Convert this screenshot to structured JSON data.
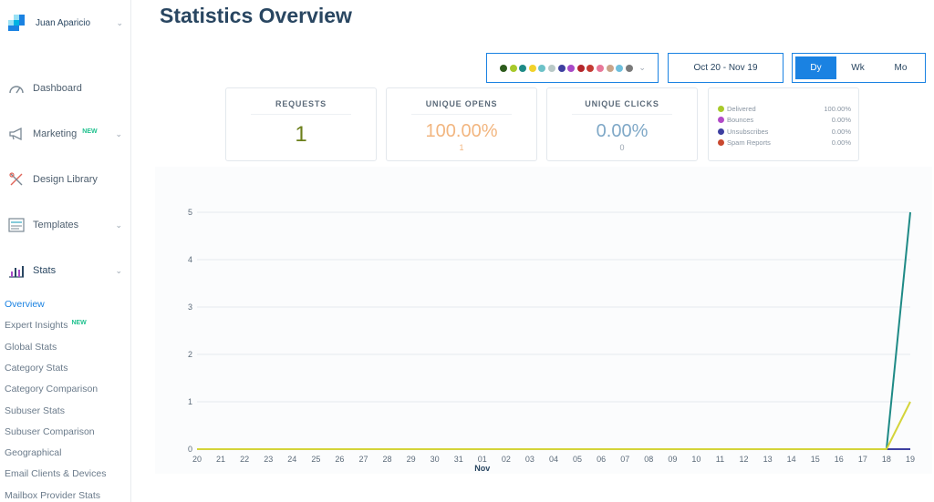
{
  "user": {
    "name": "Juan Aparicio"
  },
  "nav": [
    {
      "key": "dashboard",
      "label": "Dashboard",
      "icon": "dashboard-gauge-icon"
    },
    {
      "key": "marketing",
      "label": "Marketing",
      "badge": "NEW",
      "icon": "megaphone-icon"
    },
    {
      "key": "design",
      "label": "Design Library",
      "icon": "design-tools-icon"
    },
    {
      "key": "templates",
      "label": "Templates",
      "icon": "templates-icon"
    },
    {
      "key": "stats",
      "label": "Stats",
      "icon": "bar-chart-icon"
    }
  ],
  "stats_menu": [
    {
      "label": "Overview",
      "active": true
    },
    {
      "label": "Expert Insights",
      "badge": "NEW"
    },
    {
      "label": "Global Stats"
    },
    {
      "label": "Category Stats"
    },
    {
      "label": "Category Comparison"
    },
    {
      "label": "Subuser Stats"
    },
    {
      "label": "Subuser Comparison"
    },
    {
      "label": "Geographical"
    },
    {
      "label": "Email Clients & Devices"
    },
    {
      "label": "Mailbox Provider Stats"
    }
  ],
  "page": {
    "title": "Statistics Overview"
  },
  "color_picker": {
    "colors": [
      "#2d5b1c",
      "#a8c92b",
      "#1e8a86",
      "#f2d22a",
      "#6cc2c8",
      "#b9c9c7",
      "#3d3fa0",
      "#a84ac7",
      "#b4262b",
      "#c43b34",
      "#e8789a",
      "#c9a58a",
      "#6fbfdc",
      "#7a7a7a"
    ]
  },
  "date_range": {
    "label": "Oct 20 - Nov 19"
  },
  "granularity": {
    "options": [
      "Dy",
      "Wk",
      "Mo"
    ],
    "selected": "Dy"
  },
  "cards": {
    "requests": {
      "title": "REQUESTS",
      "value": "1"
    },
    "unique_opens": {
      "title": "UNIQUE OPENS",
      "value": "100.00%",
      "sub": "1"
    },
    "unique_clicks": {
      "title": "UNIQUE CLICKS",
      "value": "0.00%",
      "sub": "0"
    }
  },
  "legend": [
    {
      "name": "Delivered",
      "pct": "100.00%",
      "color": "#a8c92b"
    },
    {
      "name": "Bounces",
      "pct": "0.00%",
      "color": "#b24ac7"
    },
    {
      "name": "Unsubscribes",
      "pct": "0.00%",
      "color": "#3d3fa0"
    },
    {
      "name": "Spam Reports",
      "pct": "0.00%",
      "color": "#c9482f"
    }
  ],
  "chart_data": {
    "type": "line",
    "x": [
      "20",
      "21",
      "22",
      "23",
      "24",
      "25",
      "26",
      "27",
      "28",
      "29",
      "30",
      "31",
      "01",
      "02",
      "03",
      "04",
      "05",
      "06",
      "07",
      "08",
      "09",
      "10",
      "11",
      "12",
      "13",
      "14",
      "15",
      "16",
      "17",
      "18",
      "19"
    ],
    "x_sublabel": {
      "at": "01",
      "text": "Nov"
    },
    "ylim": [
      0,
      5
    ],
    "yticks": [
      0,
      1,
      2,
      3,
      4,
      5
    ],
    "grid": true,
    "series": [
      {
        "color": "#3d3fa0",
        "values": [
          0,
          0,
          0,
          0,
          0,
          0,
          0,
          0,
          0,
          0,
          0,
          0,
          0,
          0,
          0,
          0,
          0,
          0,
          0,
          0,
          0,
          0,
          0,
          0,
          0,
          0,
          0,
          0,
          0,
          0,
          0
        ]
      },
      {
        "color": "#1e8a86",
        "values": [
          0,
          0,
          0,
          0,
          0,
          0,
          0,
          0,
          0,
          0,
          0,
          0,
          0,
          0,
          0,
          0,
          0,
          0,
          0,
          0,
          0,
          0,
          0,
          0,
          0,
          0,
          0,
          0,
          0,
          0,
          5
        ]
      },
      {
        "color": "#d4d43a",
        "values": [
          0,
          0,
          0,
          0,
          0,
          0,
          0,
          0,
          0,
          0,
          0,
          0,
          0,
          0,
          0,
          0,
          0,
          0,
          0,
          0,
          0,
          0,
          0,
          0,
          0,
          0,
          0,
          0,
          0,
          0,
          1
        ]
      }
    ]
  }
}
